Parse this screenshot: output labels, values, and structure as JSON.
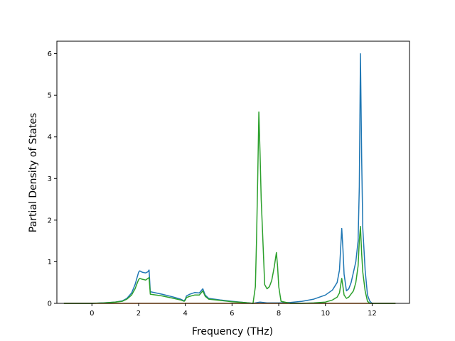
{
  "chart_data": {
    "type": "line",
    "title": "",
    "xlabel": "Frequency (THz)",
    "ylabel": "Partial Density of States",
    "xlim": [
      -1.5,
      13.6
    ],
    "ylim": [
      0,
      6.3
    ],
    "xticks": [
      0,
      2,
      4,
      6,
      8,
      10,
      12
    ],
    "yticks": [
      0,
      1,
      2,
      3,
      4,
      5,
      6
    ],
    "grid": false,
    "legend": "none",
    "series": [
      {
        "color": "#1f77b4",
        "x": [
          -1.2,
          0.0,
          0.5,
          1.0,
          1.3,
          1.5,
          1.7,
          1.85,
          1.95,
          2.0,
          2.05,
          2.15,
          2.3,
          2.4,
          2.45,
          2.5,
          3.0,
          3.5,
          3.8,
          3.95,
          4.0,
          4.05,
          4.2,
          4.4,
          4.6,
          4.75,
          4.85,
          5.0,
          5.5,
          6.0,
          6.5,
          6.9,
          7.0,
          7.1,
          7.2,
          7.5,
          8.0,
          8.5,
          9.0,
          9.5,
          10.0,
          10.3,
          10.5,
          10.6,
          10.7,
          10.75,
          10.8,
          10.9,
          11.0,
          11.1,
          11.3,
          11.4,
          11.45,
          11.5,
          11.55,
          11.6,
          11.7,
          11.8,
          11.9,
          12.0,
          13.0
        ],
        "values": [
          0.0,
          0.0,
          0.01,
          0.03,
          0.06,
          0.12,
          0.25,
          0.45,
          0.65,
          0.75,
          0.78,
          0.75,
          0.73,
          0.76,
          0.8,
          0.28,
          0.22,
          0.15,
          0.1,
          0.06,
          0.1,
          0.18,
          0.22,
          0.26,
          0.25,
          0.35,
          0.2,
          0.12,
          0.08,
          0.05,
          0.02,
          0.0,
          0.01,
          0.02,
          0.03,
          0.01,
          0.01,
          0.02,
          0.05,
          0.1,
          0.2,
          0.32,
          0.5,
          0.8,
          1.8,
          1.3,
          0.7,
          0.3,
          0.35,
          0.5,
          1.0,
          1.5,
          2.8,
          6.0,
          3.5,
          1.8,
          0.8,
          0.2,
          0.05,
          0.0,
          0.0
        ]
      },
      {
        "color": "#ff7f0e",
        "x": [
          -1.2,
          13.0
        ],
        "values": [
          0.0,
          0.0
        ]
      },
      {
        "color": "#2ca02c",
        "x": [
          -1.2,
          0.0,
          0.5,
          1.0,
          1.3,
          1.5,
          1.7,
          1.85,
          1.95,
          2.0,
          2.05,
          2.15,
          2.3,
          2.4,
          2.45,
          2.5,
          3.0,
          3.5,
          3.8,
          3.95,
          4.0,
          4.05,
          4.2,
          4.4,
          4.6,
          4.75,
          4.85,
          5.0,
          5.5,
          6.0,
          6.5,
          6.9,
          7.0,
          7.05,
          7.1,
          7.15,
          7.2,
          7.25,
          7.3,
          7.4,
          7.5,
          7.6,
          7.7,
          7.8,
          7.9,
          7.95,
          8.0,
          8.1,
          8.5,
          9.0,
          9.5,
          10.0,
          10.3,
          10.5,
          10.6,
          10.7,
          10.75,
          10.8,
          10.9,
          11.0,
          11.2,
          11.3,
          11.4,
          11.45,
          11.5,
          11.55,
          11.6,
          11.7,
          11.8,
          11.9,
          12.0,
          13.0
        ],
        "values": [
          0.0,
          0.0,
          0.01,
          0.03,
          0.05,
          0.1,
          0.2,
          0.35,
          0.5,
          0.57,
          0.6,
          0.58,
          0.56,
          0.6,
          0.62,
          0.22,
          0.18,
          0.12,
          0.08,
          0.05,
          0.08,
          0.14,
          0.17,
          0.2,
          0.2,
          0.3,
          0.17,
          0.1,
          0.07,
          0.04,
          0.02,
          0.0,
          0.4,
          1.5,
          3.0,
          4.6,
          3.6,
          2.5,
          1.8,
          0.45,
          0.35,
          0.4,
          0.55,
          0.85,
          1.22,
          0.9,
          0.4,
          0.05,
          0.0,
          0.0,
          0.01,
          0.03,
          0.08,
          0.15,
          0.25,
          0.6,
          0.4,
          0.2,
          0.12,
          0.15,
          0.3,
          0.5,
          0.9,
          1.5,
          1.85,
          1.2,
          0.75,
          0.3,
          0.05,
          0.0,
          0.0,
          0.0
        ]
      }
    ]
  }
}
